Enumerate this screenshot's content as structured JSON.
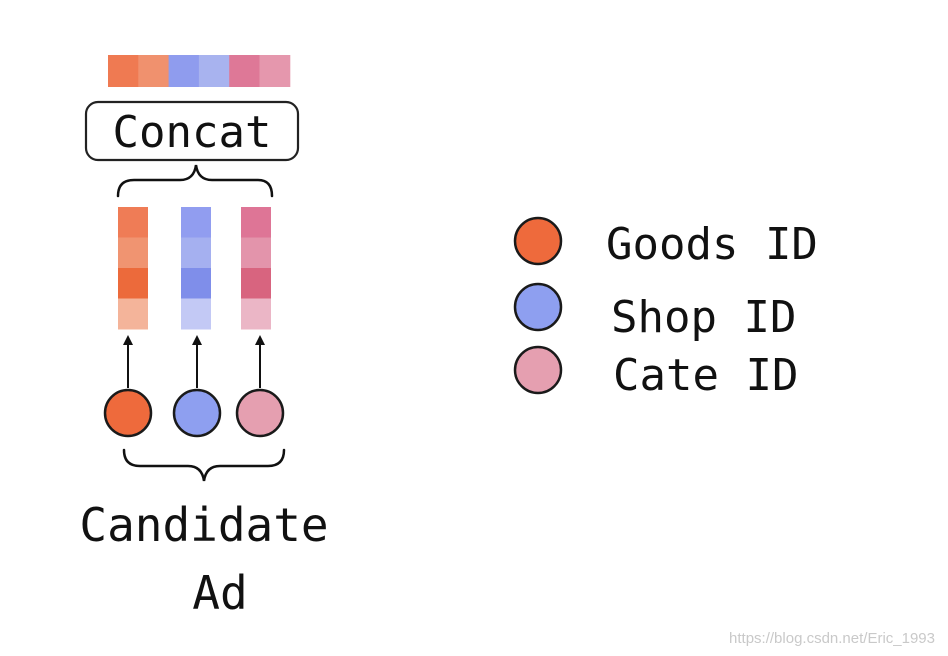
{
  "colors": {
    "goods": "#ee6a3c",
    "shop": "#8e9ff0",
    "cate": "#e59fb0",
    "outline": "#1a1a1a",
    "concat_bar": [
      "#ef7a52",
      "#f0916e",
      "#8f9cee",
      "#a8b3ef",
      "#de7897",
      "#e597ad"
    ],
    "goods_vector": [
      "#ef7c56",
      "#f09471",
      "#ec6a3b",
      "#f4b49a"
    ],
    "shop_vector": [
      "#919df0",
      "#a5b0f0",
      "#7f8eea",
      "#c3c9f5"
    ],
    "cate_vector": [
      "#de7596",
      "#e394ab",
      "#d8647f",
      "#ebb6c6"
    ]
  },
  "concat_label": "Concat",
  "candidate_label": {
    "line1": "Candidate",
    "line2": "Ad"
  },
  "legend": [
    {
      "label": "Goods ID",
      "color_key": "goods"
    },
    {
      "label": "Shop ID",
      "color_key": "shop"
    },
    {
      "label": "Cate ID",
      "color_key": "cate"
    }
  ],
  "watermark": "https://blog.csdn.net/Eric_1993"
}
